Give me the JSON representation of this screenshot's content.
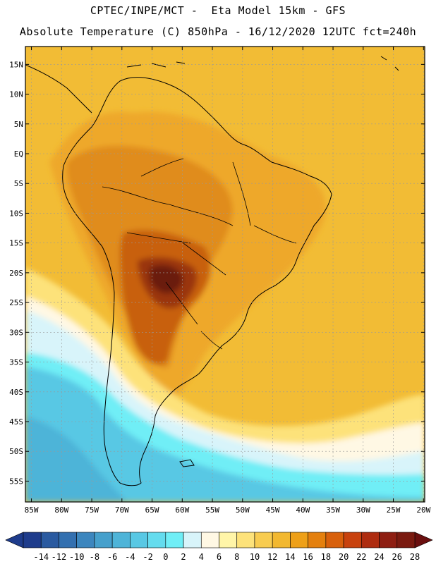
{
  "title": {
    "line1": "CPTEC/INPE/MCT -  Eta Model 15km - GFS",
    "line2": "Absolute Temperature (C) 850hPa - 16/12/2020 12UTC fct=240h"
  },
  "axes": {
    "lat_labels": [
      "15N",
      "10N",
      "5N",
      "EQ",
      "5S",
      "10S",
      "15S",
      "20S",
      "25S",
      "30S",
      "35S",
      "40S",
      "45S",
      "50S",
      "55S"
    ],
    "lon_labels": [
      "85W",
      "80W",
      "75W",
      "70W",
      "65W",
      "60W",
      "55W",
      "50W",
      "45W",
      "40W",
      "35W",
      "30W",
      "25W",
      "20W"
    ]
  },
  "colorbar": {
    "colors": [
      "#1e3c8c",
      "#2a5aa0",
      "#3370b0",
      "#3c86be",
      "#46a0cc",
      "#4eb4d8",
      "#58c8e4",
      "#64dcee",
      "#70eef6",
      "#d8f4fa",
      "#fff8e4",
      "#fff5a8",
      "#fde27a",
      "#f8cc50",
      "#f2b830",
      "#eea018",
      "#e4800e",
      "#d8600c",
      "#c8420e",
      "#ae2c10",
      "#8e1e12",
      "#7a1a10"
    ],
    "labels": [
      "-14",
      "-12",
      "-10",
      "-8",
      "-6",
      "-4",
      "-2",
      "0",
      "2",
      "4",
      "6",
      "8",
      "10",
      "12",
      "14",
      "16",
      "18",
      "20",
      "22",
      "24",
      "26",
      "28"
    ]
  },
  "map_colors": {
    "background": "#f2bc35",
    "warm1": "#eea82a",
    "warm2": "#e08c1c",
    "warm3": "#c86010",
    "hot": "#9a3410",
    "hottest": "#6a1e0c",
    "pale_yellow": "#fde27a",
    "cream": "#fff8e4",
    "ice": "#d8f4fa",
    "cyan": "#70eef6",
    "light_blue": "#58c8e4",
    "blue": "#4eb4d8"
  }
}
